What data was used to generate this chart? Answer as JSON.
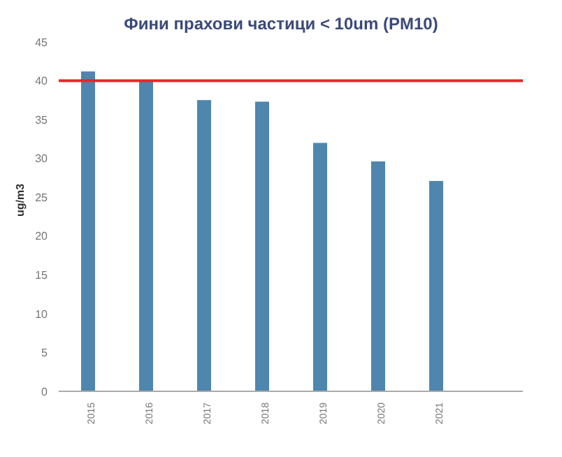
{
  "chart_data": {
    "type": "bar",
    "title": "Фини прахови частици < 10um (PM10)",
    "ylabel": "ug/m3",
    "categories": [
      "2015",
      "2016",
      "2017",
      "2018",
      "2019",
      "2020",
      "2021",
      null
    ],
    "values": [
      41.2,
      40,
      37.5,
      37.3,
      32,
      29.6,
      27.1,
      null
    ],
    "color": "#4e86ae",
    "ylim": [
      0,
      45
    ],
    "yticks": [
      0,
      5,
      10,
      15,
      20,
      25,
      30,
      35,
      40,
      45
    ],
    "ref_lines": [
      {
        "axis": "y",
        "value": 40,
        "color": "#e8262b"
      }
    ],
    "grid": false
  }
}
